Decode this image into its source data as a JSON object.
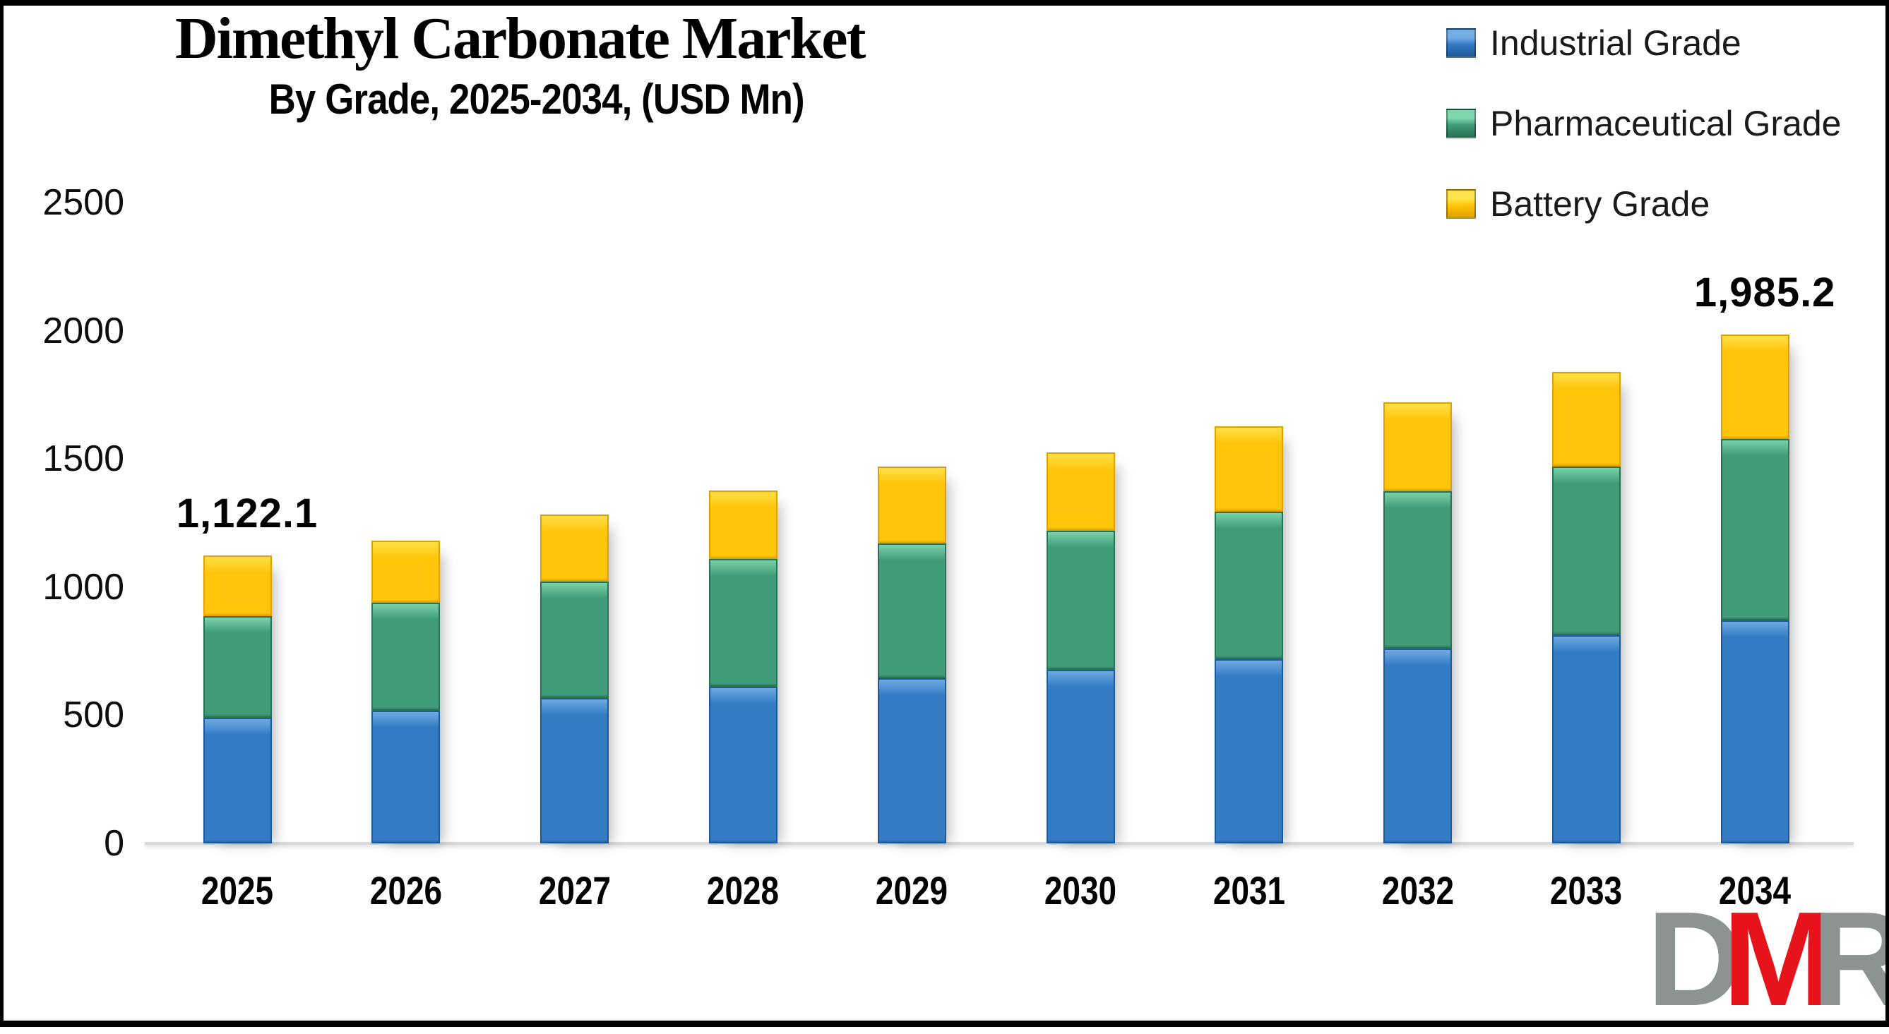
{
  "title": "Dimethyl Carbonate Market",
  "subtitle": "By Grade, 2025-2034, (USD Mn)",
  "chart_data": {
    "type": "bar",
    "stacked": true,
    "title": "Dimethyl Carbonate Market",
    "subtitle": "By Grade, 2025-2034, (USD Mn)",
    "categories": [
      "2025",
      "2026",
      "2027",
      "2028",
      "2029",
      "2030",
      "2031",
      "2032",
      "2033",
      "2034"
    ],
    "series": [
      {
        "name": "Industrial Grade",
        "color": "#337CC4",
        "color_light": "#74AEE4",
        "color_dark": "#1E5A99",
        "values": [
          490,
          518,
          567,
          611,
          644,
          677,
          719,
          760,
          812,
          870
        ]
      },
      {
        "name": "Pharmaceutical Grade",
        "color": "#3F9B78",
        "color_light": "#7FD6AE",
        "color_dark": "#2A7257",
        "values": [
          396,
          420,
          454,
          499,
          526,
          543,
          575,
          614,
          658,
          708
        ]
      },
      {
        "name": "Battery Grade",
        "color": "#FFC50A",
        "color_light": "#FFE34D",
        "color_dark": "#DFA000",
        "values": [
          236.1,
          243,
          262,
          267,
          300,
          305,
          333,
          347,
          369,
          407.2
        ]
      }
    ],
    "totals": [
      1122.1,
      1181,
      1283,
      1377,
      1470,
      1525,
      1627,
      1721,
      1839,
      1985.2
    ],
    "annotations": {
      "2025": "1,122.1",
      "2034": "1,985.2"
    },
    "ylim": [
      0,
      2500
    ],
    "yticks": [
      0,
      500,
      1000,
      1500,
      2000,
      2500
    ],
    "legend_position": "top-right",
    "grid": false,
    "axis_color": "#D9D9D9"
  },
  "logo": {
    "letters": [
      {
        "char": "D",
        "color": "#8C9390"
      },
      {
        "char": "M",
        "color": "#E6131B"
      },
      {
        "char": "R",
        "color": "#8C9390"
      }
    ]
  }
}
